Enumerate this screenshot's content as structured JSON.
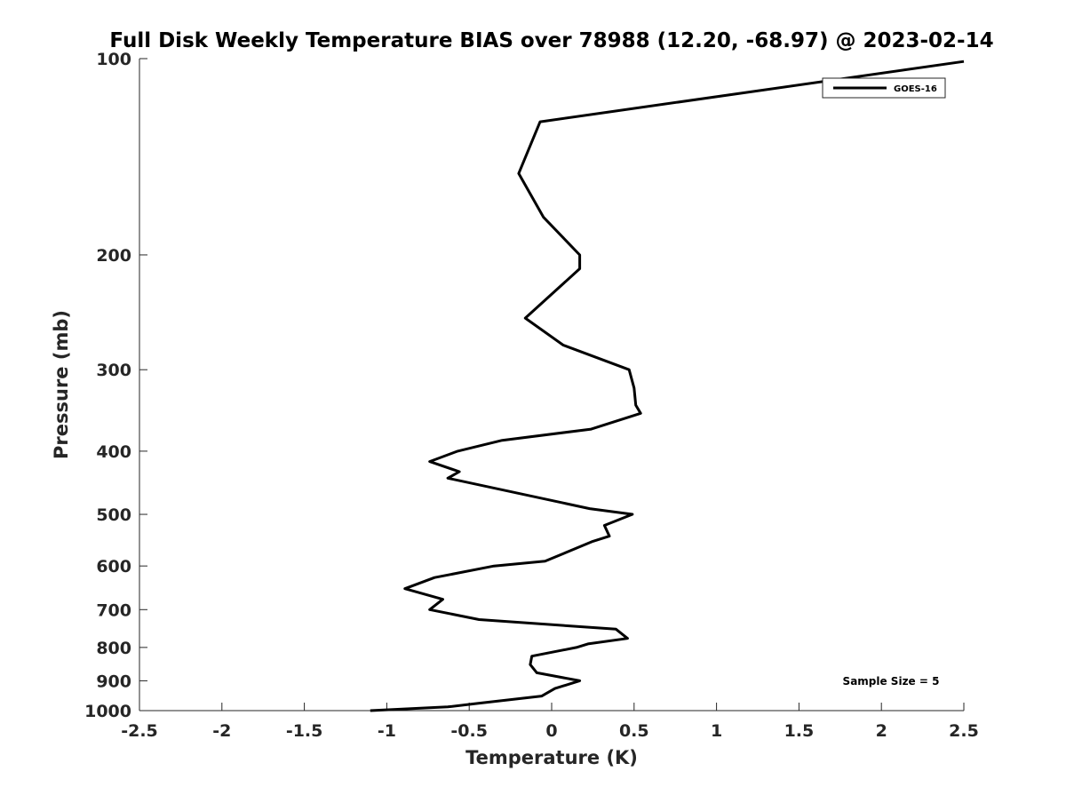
{
  "chart_data": {
    "type": "line",
    "title": "Full Disk Weekly Temperature BIAS over 78988 (12.20, -68.97) @ 2023-02-14",
    "xlabel": "Temperature (K)",
    "ylabel": "Pressure (mb)",
    "xlim": [
      -2.5,
      2.5
    ],
    "ylim": [
      1000,
      100
    ],
    "yscale": "log",
    "y_reversed": true,
    "grid": false,
    "legend_position": "top-right",
    "xticks": [
      -2.5,
      -2,
      -1.5,
      -1,
      -0.5,
      0,
      0.5,
      1,
      1.5,
      2,
      2.5
    ],
    "xtick_labels": [
      "-2.5",
      "-2",
      "-1.5",
      "-1",
      "-0.5",
      "0",
      "0.5",
      "1",
      "1.5",
      "2",
      "2.5"
    ],
    "yticks": [
      100,
      200,
      300,
      400,
      500,
      600,
      700,
      800,
      900,
      1000
    ],
    "ytick_labels": [
      "100",
      "200",
      "300",
      "400",
      "500",
      "600",
      "700",
      "800",
      "900",
      "1000"
    ],
    "annotation": "Sample Size = 5",
    "series": [
      {
        "name": "GOES-16",
        "color": "#000000",
        "points": [
          {
            "x": 2.5,
            "y": 101
          },
          {
            "x": -0.07,
            "y": 125
          },
          {
            "x": -0.2,
            "y": 150
          },
          {
            "x": -0.05,
            "y": 175
          },
          {
            "x": 0.17,
            "y": 200
          },
          {
            "x": 0.17,
            "y": 210
          },
          {
            "x": -0.16,
            "y": 250
          },
          {
            "x": 0.07,
            "y": 275
          },
          {
            "x": 0.47,
            "y": 300
          },
          {
            "x": 0.5,
            "y": 320
          },
          {
            "x": 0.51,
            "y": 340
          },
          {
            "x": 0.54,
            "y": 350
          },
          {
            "x": 0.24,
            "y": 370
          },
          {
            "x": -0.3,
            "y": 385
          },
          {
            "x": -0.57,
            "y": 400
          },
          {
            "x": -0.74,
            "y": 415
          },
          {
            "x": -0.56,
            "y": 430
          },
          {
            "x": -0.63,
            "y": 440
          },
          {
            "x": 0.23,
            "y": 490
          },
          {
            "x": 0.49,
            "y": 500
          },
          {
            "x": 0.32,
            "y": 520
          },
          {
            "x": 0.35,
            "y": 540
          },
          {
            "x": 0.25,
            "y": 550
          },
          {
            "x": -0.04,
            "y": 590
          },
          {
            "x": -0.35,
            "y": 600
          },
          {
            "x": -0.71,
            "y": 625
          },
          {
            "x": -0.89,
            "y": 650
          },
          {
            "x": -0.66,
            "y": 675
          },
          {
            "x": -0.74,
            "y": 700
          },
          {
            "x": -0.44,
            "y": 725
          },
          {
            "x": 0.39,
            "y": 750
          },
          {
            "x": 0.46,
            "y": 775
          },
          {
            "x": 0.22,
            "y": 790
          },
          {
            "x": 0.15,
            "y": 800
          },
          {
            "x": -0.12,
            "y": 825
          },
          {
            "x": -0.13,
            "y": 850
          },
          {
            "x": -0.09,
            "y": 875
          },
          {
            "x": 0.17,
            "y": 900
          },
          {
            "x": 0.02,
            "y": 925
          },
          {
            "x": -0.06,
            "y": 950
          },
          {
            "x": -0.45,
            "y": 975
          },
          {
            "x": -0.63,
            "y": 987
          },
          {
            "x": -1.1,
            "y": 1000
          }
        ]
      }
    ]
  }
}
